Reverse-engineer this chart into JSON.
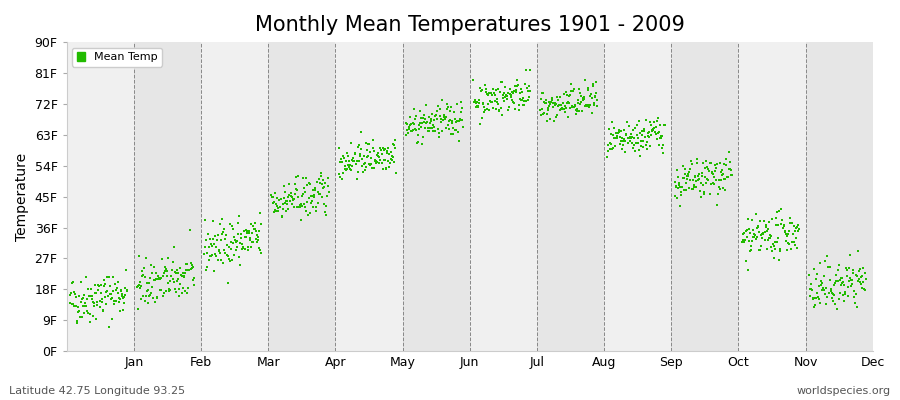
{
  "title": "Monthly Mean Temperatures 1901 - 2009",
  "ylabel": "Temperature",
  "bottom_left": "Latitude 42.75 Longitude 93.25",
  "bottom_right": "worldspecies.org",
  "legend_label": "Mean Temp",
  "dot_color": "#22bb00",
  "bg_color_light": "#f0f0f0",
  "bg_color_dark": "#e6e6e6",
  "yticks": [
    0,
    9,
    18,
    27,
    36,
    45,
    54,
    63,
    72,
    81,
    90
  ],
  "ytick_labels": [
    "0F",
    "9F",
    "18F",
    "27F",
    "36F",
    "45F",
    "54F",
    "63F",
    "72F",
    "81F",
    "90F"
  ],
  "months": [
    "Jan",
    "Feb",
    "Mar",
    "Apr",
    "May",
    "Jun",
    "Jul",
    "Aug",
    "Sep",
    "Oct",
    "Nov",
    "Dec"
  ],
  "monthly_mean_F_start": [
    14.5,
    19.0,
    30.0,
    43.0,
    55.0,
    65.0,
    72.5,
    70.5,
    60.0,
    48.0,
    32.0,
    17.5
  ],
  "monthly_mean_F_end": [
    17.0,
    22.0,
    33.0,
    46.0,
    58.0,
    68.0,
    75.5,
    73.5,
    64.0,
    52.0,
    35.0,
    21.0
  ],
  "monthly_std_F": [
    3.5,
    3.5,
    3.5,
    3.0,
    2.5,
    2.5,
    2.5,
    2.5,
    2.5,
    3.0,
    3.0,
    3.5
  ],
  "n_years": 109,
  "ylim": [
    0,
    90
  ],
  "title_fontsize": 15,
  "axis_fontsize": 10,
  "tick_fontsize": 9,
  "small_fontsize": 8,
  "dot_size": 4
}
